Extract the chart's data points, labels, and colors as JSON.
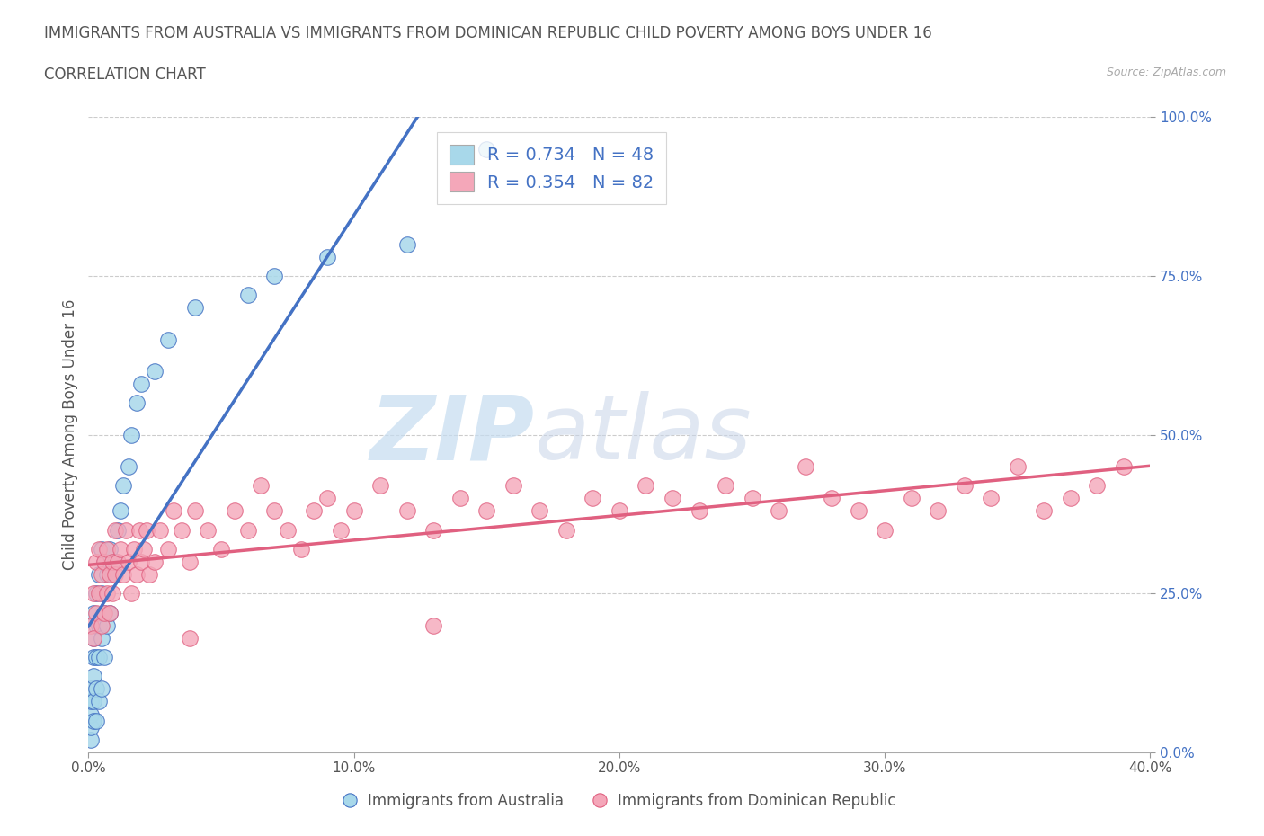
{
  "title_line1": "IMMIGRANTS FROM AUSTRALIA VS IMMIGRANTS FROM DOMINICAN REPUBLIC CHILD POVERTY AMONG BOYS UNDER 16",
  "title_line2": "CORRELATION CHART",
  "source": "Source: ZipAtlas.com",
  "ylabel": "Child Poverty Among Boys Under 16",
  "xlabel_australia": "Immigrants from Australia",
  "xlabel_dr": "Immigrants from Dominican Republic",
  "xlim": [
    0.0,
    0.4
  ],
  "ylim": [
    0.0,
    1.0
  ],
  "xticks": [
    0.0,
    0.1,
    0.2,
    0.3,
    0.4
  ],
  "xticklabels": [
    "0.0%",
    "10.0%",
    "20.0%",
    "30.0%",
    "40.0%"
  ],
  "yticks": [
    0.0,
    0.25,
    0.5,
    0.75,
    1.0
  ],
  "yticklabels": [
    "0.0%",
    "25.0%",
    "50.0%",
    "75.0%",
    "100.0%"
  ],
  "R_australia": 0.734,
  "N_australia": 48,
  "R_dr": 0.354,
  "N_dr": 82,
  "color_australia": "#A8D8EA",
  "color_dr": "#F4A7B9",
  "line_color_australia": "#4472C4",
  "line_color_dr": "#E06080",
  "title_color": "#555555",
  "legend_R_color": "#4472C4",
  "watermark_color": "#D0E8F0",
  "watermark_color2": "#C8D8E8",
  "australia_x": [
    0.001,
    0.001,
    0.001,
    0.001,
    0.001,
    0.002,
    0.002,
    0.002,
    0.002,
    0.002,
    0.002,
    0.003,
    0.003,
    0.003,
    0.003,
    0.003,
    0.004,
    0.004,
    0.004,
    0.004,
    0.005,
    0.005,
    0.005,
    0.005,
    0.006,
    0.006,
    0.006,
    0.007,
    0.007,
    0.008,
    0.008,
    0.009,
    0.01,
    0.011,
    0.012,
    0.013,
    0.015,
    0.016,
    0.018,
    0.02,
    0.025,
    0.03,
    0.04,
    0.06,
    0.07,
    0.09,
    0.12,
    0.15
  ],
  "australia_y": [
    0.02,
    0.04,
    0.06,
    0.08,
    0.1,
    0.05,
    0.08,
    0.12,
    0.15,
    0.18,
    0.22,
    0.05,
    0.1,
    0.15,
    0.2,
    0.25,
    0.08,
    0.15,
    0.2,
    0.28,
    0.1,
    0.18,
    0.25,
    0.32,
    0.15,
    0.22,
    0.3,
    0.2,
    0.28,
    0.22,
    0.32,
    0.28,
    0.3,
    0.35,
    0.38,
    0.42,
    0.45,
    0.5,
    0.55,
    0.58,
    0.6,
    0.65,
    0.7,
    0.72,
    0.75,
    0.78,
    0.8,
    0.95
  ],
  "dr_x": [
    0.001,
    0.002,
    0.002,
    0.003,
    0.003,
    0.004,
    0.004,
    0.005,
    0.005,
    0.006,
    0.006,
    0.007,
    0.007,
    0.008,
    0.008,
    0.009,
    0.009,
    0.01,
    0.01,
    0.011,
    0.012,
    0.013,
    0.014,
    0.015,
    0.016,
    0.017,
    0.018,
    0.019,
    0.02,
    0.021,
    0.022,
    0.023,
    0.025,
    0.027,
    0.03,
    0.032,
    0.035,
    0.038,
    0.04,
    0.045,
    0.05,
    0.055,
    0.06,
    0.065,
    0.07,
    0.075,
    0.08,
    0.085,
    0.09,
    0.095,
    0.1,
    0.11,
    0.12,
    0.13,
    0.14,
    0.15,
    0.16,
    0.17,
    0.18,
    0.19,
    0.2,
    0.21,
    0.22,
    0.23,
    0.24,
    0.25,
    0.26,
    0.27,
    0.28,
    0.29,
    0.3,
    0.31,
    0.32,
    0.33,
    0.34,
    0.35,
    0.36,
    0.37,
    0.38,
    0.39,
    0.038,
    0.13
  ],
  "dr_y": [
    0.2,
    0.18,
    0.25,
    0.22,
    0.3,
    0.25,
    0.32,
    0.2,
    0.28,
    0.22,
    0.3,
    0.25,
    0.32,
    0.28,
    0.22,
    0.3,
    0.25,
    0.28,
    0.35,
    0.3,
    0.32,
    0.28,
    0.35,
    0.3,
    0.25,
    0.32,
    0.28,
    0.35,
    0.3,
    0.32,
    0.35,
    0.28,
    0.3,
    0.35,
    0.32,
    0.38,
    0.35,
    0.3,
    0.38,
    0.35,
    0.32,
    0.38,
    0.35,
    0.42,
    0.38,
    0.35,
    0.32,
    0.38,
    0.4,
    0.35,
    0.38,
    0.42,
    0.38,
    0.35,
    0.4,
    0.38,
    0.42,
    0.38,
    0.35,
    0.4,
    0.38,
    0.42,
    0.4,
    0.38,
    0.42,
    0.4,
    0.38,
    0.45,
    0.4,
    0.38,
    0.35,
    0.4,
    0.38,
    0.42,
    0.4,
    0.45,
    0.38,
    0.4,
    0.42,
    0.45,
    0.18,
    0.2
  ]
}
